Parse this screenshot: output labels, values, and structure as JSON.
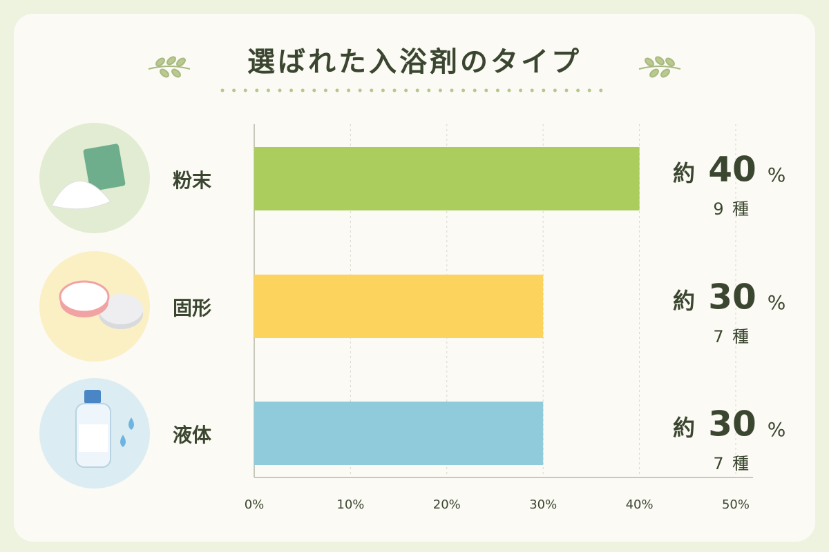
{
  "chart_data": {
    "type": "bar",
    "orientation": "horizontal",
    "title": "選ばれた入浴剤のタイプ",
    "categories": [
      "粉末",
      "固形",
      "液体"
    ],
    "values": [
      40,
      30,
      30
    ],
    "colors": [
      "#abcd5e",
      "#fcd35d",
      "#8fcbdb"
    ],
    "value_prefix": "約",
    "value_suffix": "%",
    "counts": [
      9,
      7,
      7
    ],
    "count_unit": "種",
    "xlim": [
      0,
      50
    ],
    "xticks": [
      {
        "value": 0,
        "label": "0%"
      },
      {
        "value": 10,
        "label": "10%"
      },
      {
        "value": 20,
        "label": "20%"
      },
      {
        "value": 30,
        "label": "30%"
      },
      {
        "value": 40,
        "label": "40%"
      },
      {
        "value": 50,
        "label": "50%"
      }
    ],
    "grid": true
  }
}
